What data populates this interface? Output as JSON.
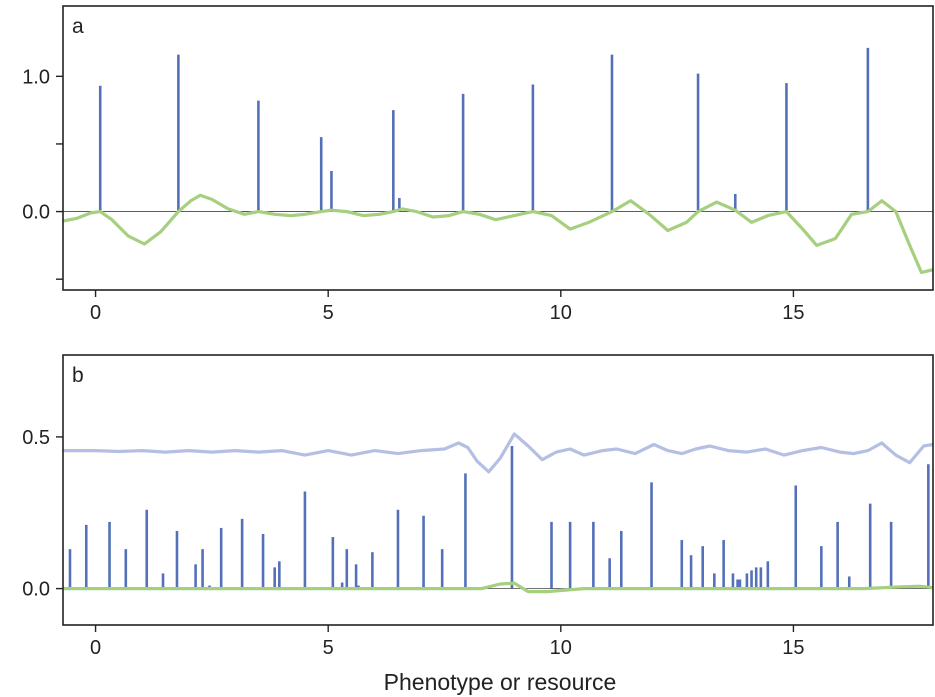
{
  "chart_data": [
    {
      "type": "line",
      "panel_label": "a",
      "xlim": [
        -0.7,
        18
      ],
      "ylim": [
        -0.58,
        1.52
      ],
      "xticks": [
        0,
        5,
        10,
        15
      ],
      "xtick_labels": [
        "0",
        "5",
        "10",
        "15"
      ],
      "yticks": [
        -0.5,
        0.0,
        0.5,
        1.0
      ],
      "ytick_labels": [
        "",
        "0.0",
        "",
        "1.0"
      ],
      "xlabel": "",
      "ylabel": "",
      "series": [
        {
          "kind": "stem",
          "color": "#5470b8",
          "x": [
            0.1,
            1.78,
            3.5,
            4.85,
            5.07,
            6.4,
            6.53,
            7.9,
            9.4,
            11.1,
            12.95,
            13.75,
            14.85,
            16.6
          ],
          "y": [
            0.93,
            1.16,
            0.82,
            0.55,
            0.3,
            0.75,
            0.1,
            0.87,
            0.94,
            1.16,
            1.02,
            0.13,
            0.95,
            1.21
          ]
        },
        {
          "kind": "line",
          "color": "#a6cf80",
          "x": [
            -0.7,
            -0.4,
            -0.1,
            0.1,
            0.35,
            0.7,
            1.05,
            1.4,
            1.78,
            2.05,
            2.25,
            2.5,
            2.85,
            3.2,
            3.5,
            3.85,
            4.2,
            4.5,
            4.85,
            5.07,
            5.4,
            5.75,
            6.1,
            6.4,
            6.6,
            6.9,
            7.25,
            7.6,
            7.9,
            8.25,
            8.6,
            9.0,
            9.4,
            9.8,
            10.2,
            10.6,
            11.1,
            11.5,
            11.9,
            12.3,
            12.7,
            12.95,
            13.35,
            13.75,
            14.1,
            14.45,
            14.85,
            15.2,
            15.5,
            15.9,
            16.25,
            16.6,
            16.9,
            17.2,
            17.5,
            17.75,
            18.0
          ],
          "y": [
            -0.07,
            -0.05,
            -0.01,
            0.0,
            -0.06,
            -0.18,
            -0.24,
            -0.15,
            0.0,
            0.08,
            0.12,
            0.09,
            0.02,
            -0.02,
            0.0,
            -0.02,
            -0.03,
            -0.02,
            0.0,
            0.01,
            0.0,
            -0.03,
            -0.02,
            0.0,
            0.02,
            0.0,
            -0.04,
            -0.03,
            0.0,
            -0.02,
            -0.06,
            -0.03,
            0.0,
            -0.03,
            -0.13,
            -0.08,
            0.0,
            0.08,
            -0.02,
            -0.14,
            -0.08,
            0.0,
            0.07,
            0.01,
            -0.08,
            -0.03,
            0.0,
            -0.13,
            -0.25,
            -0.2,
            -0.02,
            0.0,
            0.08,
            0.0,
            -0.25,
            -0.45,
            -0.43
          ]
        }
      ]
    },
    {
      "type": "line",
      "panel_label": "b",
      "xlim": [
        -0.7,
        18
      ],
      "ylim": [
        -0.12,
        0.77
      ],
      "xticks": [
        0,
        5,
        10,
        15
      ],
      "xtick_labels": [
        "0",
        "5",
        "10",
        "15"
      ],
      "yticks": [
        0.0,
        0.5
      ],
      "ytick_labels": [
        "0.0",
        "0.5"
      ],
      "xlabel": "Phenotype or resource",
      "ylabel": "",
      "series": [
        {
          "kind": "stem",
          "color": "#5470b8",
          "x": [
            -0.55,
            -0.2,
            0.3,
            0.65,
            1.1,
            1.45,
            1.75,
            2.15,
            2.3,
            2.45,
            2.7,
            3.15,
            3.6,
            3.85,
            3.95,
            4.5,
            5.1,
            5.3,
            5.4,
            5.6,
            5.65,
            5.95,
            6.5,
            7.05,
            7.45,
            7.95,
            8.95,
            9.8,
            10.2,
            10.7,
            11.05,
            11.3,
            11.95,
            12.6,
            12.8,
            13.05,
            13.3,
            13.5,
            13.7,
            13.8,
            13.85,
            14.0,
            14.1,
            14.2,
            14.3,
            14.45,
            15.05,
            15.6,
            15.95,
            16.2,
            16.65,
            17.1,
            17.9
          ],
          "y": [
            0.13,
            0.21,
            0.22,
            0.13,
            0.26,
            0.05,
            0.19,
            0.08,
            0.13,
            0.01,
            0.2,
            0.23,
            0.18,
            0.07,
            0.09,
            0.32,
            0.17,
            0.02,
            0.13,
            0.08,
            0.01,
            0.12,
            0.26,
            0.24,
            0.13,
            0.38,
            0.47,
            0.22,
            0.22,
            0.22,
            0.1,
            0.19,
            0.35,
            0.16,
            0.11,
            0.14,
            0.05,
            0.16,
            0.05,
            0.03,
            0.03,
            0.05,
            0.06,
            0.07,
            0.07,
            0.09,
            0.34,
            0.14,
            0.22,
            0.04,
            0.28,
            0.22,
            0.41
          ]
        },
        {
          "kind": "line",
          "color": "#b5bfe4",
          "x": [
            -0.7,
            0.0,
            0.5,
            1.0,
            1.5,
            2.0,
            2.5,
            3.0,
            3.5,
            4.0,
            4.5,
            5.0,
            5.5,
            6.0,
            6.5,
            7.0,
            7.5,
            7.8,
            8.0,
            8.2,
            8.45,
            8.7,
            9.0,
            9.3,
            9.6,
            9.9,
            10.2,
            10.5,
            10.9,
            11.2,
            11.6,
            12.0,
            12.3,
            12.6,
            12.9,
            13.2,
            13.6,
            14.0,
            14.4,
            14.8,
            15.2,
            15.6,
            16.0,
            16.3,
            16.6,
            16.9,
            17.2,
            17.5,
            17.8,
            18.0
          ],
          "y": [
            0.455,
            0.455,
            0.452,
            0.455,
            0.45,
            0.455,
            0.45,
            0.455,
            0.45,
            0.455,
            0.44,
            0.455,
            0.44,
            0.455,
            0.445,
            0.455,
            0.46,
            0.48,
            0.465,
            0.42,
            0.385,
            0.43,
            0.51,
            0.47,
            0.425,
            0.45,
            0.46,
            0.44,
            0.455,
            0.46,
            0.445,
            0.475,
            0.455,
            0.445,
            0.46,
            0.47,
            0.455,
            0.45,
            0.46,
            0.44,
            0.455,
            0.465,
            0.45,
            0.445,
            0.455,
            0.48,
            0.44,
            0.415,
            0.47,
            0.475
          ]
        },
        {
          "kind": "line",
          "color": "#a6cf80",
          "x": [
            -0.7,
            1.0,
            3.0,
            5.0,
            7.0,
            7.8,
            8.3,
            8.7,
            9.0,
            9.3,
            9.7,
            10.5,
            12.0,
            14.0,
            15.5,
            16.5,
            17.2,
            17.7,
            18.0
          ],
          "y": [
            0.0,
            0.0,
            0.0,
            0.0,
            0.0,
            0.0,
            0.0,
            0.015,
            0.018,
            -0.01,
            -0.01,
            0.0,
            0.0,
            0.0,
            0.0,
            0.0,
            0.005,
            0.008,
            0.003
          ]
        }
      ]
    }
  ]
}
